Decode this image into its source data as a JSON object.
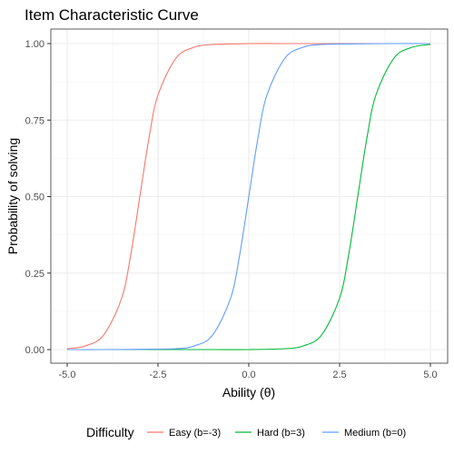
{
  "chart_data": {
    "type": "line",
    "title": "Item Characteristic Curve",
    "xlabel": "Ability (θ)",
    "ylabel": "Probability of solving",
    "xlim": [
      -5.0,
      5.0
    ],
    "ylim": [
      0.0,
      1.0
    ],
    "x_ticks": [
      "-5.0",
      "-2.5",
      "0.0",
      "2.5",
      "5.0"
    ],
    "y_ticks": [
      "0.00",
      "0.25",
      "0.50",
      "0.75",
      "1.00"
    ],
    "x_tick_values": [
      -5.0,
      -2.5,
      0.0,
      2.5,
      5.0
    ],
    "y_tick_values": [
      0.0,
      0.25,
      0.5,
      0.75,
      1.0
    ],
    "grid": true,
    "legend_title": "Difficulty",
    "legend_position": "bottom",
    "series": [
      {
        "name": "Easy (b=-3)",
        "color": "#F8766D",
        "x": [
          -5,
          -4.5,
          -4,
          -3.5,
          -3.25,
          -3,
          -2.75,
          -2.5,
          -2,
          -1.5,
          -1,
          0,
          1,
          2,
          3,
          4,
          5
        ],
        "y": [
          0.003,
          0.012,
          0.047,
          0.168,
          0.31,
          0.5,
          0.69,
          0.832,
          0.953,
          0.988,
          0.997,
          1.0,
          1.0,
          1.0,
          1.0,
          1.0,
          1.0
        ]
      },
      {
        "name": "Hard (b=3)",
        "color": "#00BA38",
        "x": [
          -5,
          -4,
          -3,
          -2,
          -1,
          0,
          1,
          1.5,
          2,
          2.5,
          2.75,
          3,
          3.25,
          3.5,
          4,
          4.5,
          5
        ],
        "y": [
          0.0,
          0.0,
          0.0,
          0.0,
          0.0,
          0.0,
          0.003,
          0.012,
          0.047,
          0.168,
          0.31,
          0.5,
          0.69,
          0.832,
          0.953,
          0.988,
          0.997
        ]
      },
      {
        "name": "Medium (b=0)",
        "color": "#619CFF",
        "x": [
          -5,
          -4,
          -3,
          -2,
          -1.5,
          -1,
          -0.5,
          -0.25,
          0,
          0.25,
          0.5,
          1,
          1.5,
          2,
          3,
          4,
          5
        ],
        "y": [
          0.0,
          0.0,
          0.001,
          0.003,
          0.012,
          0.047,
          0.168,
          0.31,
          0.5,
          0.69,
          0.832,
          0.953,
          0.988,
          0.997,
          0.999,
          1.0,
          1.0
        ]
      }
    ]
  }
}
